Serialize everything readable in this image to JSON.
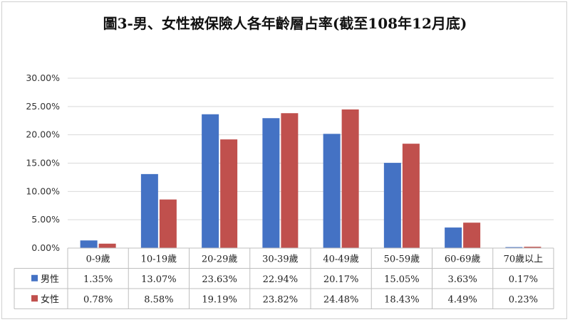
{
  "chart_data": {
    "type": "bar",
    "title": "圖3-男、女性被保險人各年齡層占率(截至108年12月底)",
    "categories": [
      "0-9歲",
      "10-19歲",
      "20-29歲",
      "30-39歲",
      "40-49歲",
      "50-59歲",
      "60-69歲",
      "70歲以上"
    ],
    "series": [
      {
        "name": "男性",
        "color": "#4472c4",
        "values": [
          1.35,
          13.07,
          23.63,
          22.94,
          20.17,
          15.05,
          3.63,
          0.17
        ],
        "labels": [
          "1.35%",
          "13.07%",
          "23.63%",
          "22.94%",
          "20.17%",
          "15.05%",
          "3.63%",
          "0.17%"
        ]
      },
      {
        "name": "女性",
        "color": "#c0504d",
        "values": [
          0.78,
          8.58,
          19.19,
          23.82,
          24.48,
          18.43,
          4.49,
          0.23
        ],
        "labels": [
          "0.78%",
          "8.58%",
          "19.19%",
          "23.82%",
          "24.48%",
          "18.43%",
          "4.49%",
          "0.23%"
        ]
      }
    ],
    "ylim": [
      0,
      30
    ],
    "yticks": [
      "0.00%",
      "5.00%",
      "10.00%",
      "15.00%",
      "20.00%",
      "25.00%",
      "30.00%"
    ],
    "grid": true,
    "legend": "data-table"
  }
}
